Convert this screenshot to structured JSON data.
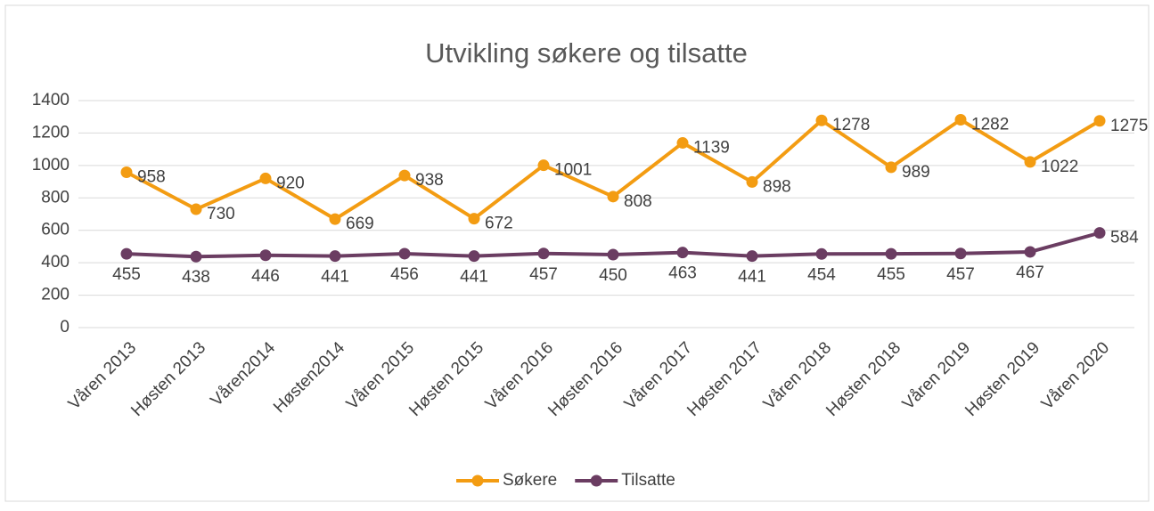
{
  "chart_data": {
    "type": "line",
    "title": "Utvikling søkere og tilsatte",
    "categories": [
      "Våren 2013",
      "Høsten 2013",
      "Våren2014",
      "Høsten2014",
      "Våren 2015",
      "Høsten 2015",
      "Våren 2016",
      "Høsten 2016",
      "Våren 2017",
      "Høsten 2017",
      "Våren 2018",
      "Høsten 2018",
      "Våren 2019",
      "Høsten 2019",
      "Våren 2020"
    ],
    "series": [
      {
        "name": "Søkere",
        "color": "#f39c12",
        "values": [
          958,
          730,
          920,
          669,
          938,
          672,
          1001,
          808,
          1139,
          898,
          1278,
          989,
          1282,
          1022,
          1275
        ]
      },
      {
        "name": "Tilsatte",
        "color": "#6b3d62",
        "values": [
          455,
          438,
          446,
          441,
          456,
          441,
          457,
          450,
          463,
          441,
          454,
          455,
          457,
          467,
          584
        ]
      }
    ],
    "ylim": [
      0,
      1400
    ],
    "yticks": [
      0,
      200,
      400,
      600,
      800,
      1000,
      1200,
      1400
    ],
    "grid": true,
    "legend": "bottom"
  }
}
